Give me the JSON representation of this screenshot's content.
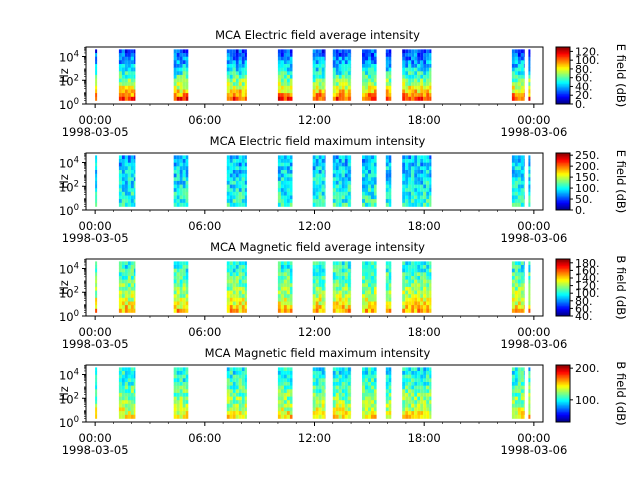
{
  "chart_data": [
    {
      "type": "heatmap",
      "title": "MCA  Electric field average intensity",
      "ylabel": "Hz",
      "y_scale": "log",
      "ylim_exp": [
        0,
        4.8
      ],
      "y_ticks": [
        {
          "base": "10",
          "exp": "4",
          "value": 4
        },
        {
          "base": "10",
          "exp": "2",
          "value": 2
        },
        {
          "base": "10",
          "exp": "0",
          "value": 0
        }
      ],
      "x_ticks": [
        "00:00",
        "06:00",
        "12:00",
        "18:00",
        "00:00"
      ],
      "x_dates": [
        "1998-03-05",
        "1998-03-06"
      ],
      "xlim_hours": [
        -0.5,
        24.5
      ],
      "colorbar": {
        "label": "E field (dB)",
        "range": [
          0,
          130
        ],
        "ticks": [
          "120.",
          "100.",
          "80.",
          "60.",
          "40.",
          "20.",
          "0."
        ],
        "tick_values": [
          120,
          100,
          80,
          60,
          40,
          20,
          0
        ]
      },
      "intervals_hours": [
        [
          0.0,
          0.1
        ],
        [
          1.3,
          2.2
        ],
        [
          4.3,
          5.1
        ],
        [
          7.2,
          8.3
        ],
        [
          10.0,
          10.8
        ],
        [
          11.9,
          12.6
        ],
        [
          13.0,
          14.0
        ],
        [
          14.6,
          15.4
        ],
        [
          15.9,
          16.2
        ],
        [
          16.8,
          18.4
        ],
        [
          22.8,
          23.5
        ],
        [
          23.7,
          23.8
        ]
      ],
      "intensity_profile": "high at low frequency (~100-120 dB), decreasing to ~40-60 dB above 10^3 Hz"
    },
    {
      "type": "heatmap",
      "title": "MCA  Electric field maximum intensity",
      "ylabel": "Hz",
      "y_scale": "log",
      "ylim_exp": [
        0,
        4.8
      ],
      "y_ticks": [
        {
          "base": "10",
          "exp": "4",
          "value": 4
        },
        {
          "base": "10",
          "exp": "2",
          "value": 2
        },
        {
          "base": "10",
          "exp": "0",
          "value": 0
        }
      ],
      "x_ticks": [
        "00:00",
        "06:00",
        "12:00",
        "18:00",
        "00:00"
      ],
      "x_dates": [
        "1998-03-05",
        "1998-03-06"
      ],
      "xlim_hours": [
        -0.5,
        24.5
      ],
      "colorbar": {
        "label": "E field (dB)",
        "range": [
          0,
          260
        ],
        "ticks": [
          "250.",
          "200.",
          "150.",
          "100.",
          "50.",
          "0."
        ],
        "tick_values": [
          250,
          200,
          150,
          100,
          50,
          0
        ]
      },
      "intervals_hours": [
        [
          0.0,
          0.1
        ],
        [
          1.3,
          2.2
        ],
        [
          4.3,
          5.1
        ],
        [
          7.2,
          8.3
        ],
        [
          10.0,
          10.8
        ],
        [
          11.9,
          12.6
        ],
        [
          13.0,
          14.0
        ],
        [
          14.6,
          15.4
        ],
        [
          15.9,
          16.2
        ],
        [
          16.8,
          18.4
        ],
        [
          22.8,
          23.5
        ],
        [
          23.7,
          23.8
        ]
      ],
      "intensity_profile": "mostly ~60-120 dB, blue-green throughout"
    },
    {
      "type": "heatmap",
      "title": "MCA  Magnetic field average intensity",
      "ylabel": "Hz",
      "y_scale": "log",
      "ylim_exp": [
        0,
        4.8
      ],
      "y_ticks": [
        {
          "base": "10",
          "exp": "4",
          "value": 4
        },
        {
          "base": "10",
          "exp": "2",
          "value": 2
        },
        {
          "base": "10",
          "exp": "0",
          "value": 0
        }
      ],
      "x_ticks": [
        "00:00",
        "06:00",
        "12:00",
        "18:00",
        "00:00"
      ],
      "x_dates": [
        "1998-03-05",
        "1998-03-06"
      ],
      "xlim_hours": [
        -0.5,
        24.5
      ],
      "colorbar": {
        "label": "B field (dB)",
        "range": [
          40,
          190
        ],
        "ticks": [
          "180.",
          "160.",
          "140.",
          "120.",
          "100.",
          "80.",
          "60.",
          "40."
        ],
        "tick_values": [
          180,
          160,
          140,
          120,
          100,
          80,
          60,
          40
        ]
      },
      "intervals_hours": [
        [
          0.0,
          0.1
        ],
        [
          1.3,
          2.2
        ],
        [
          4.3,
          5.1
        ],
        [
          7.2,
          8.3
        ],
        [
          10.0,
          10.8
        ],
        [
          11.9,
          12.6
        ],
        [
          13.0,
          14.0
        ],
        [
          14.6,
          15.4
        ],
        [
          15.9,
          16.2
        ],
        [
          16.8,
          18.4
        ],
        [
          22.8,
          23.5
        ],
        [
          23.7,
          23.8
        ]
      ],
      "intensity_profile": "~140-160 dB at low frequency, ~100-110 dB above 10^2 Hz"
    },
    {
      "type": "heatmap",
      "title": "MCA  Magnetic field maximum intensity",
      "ylabel": "Hz",
      "y_scale": "log",
      "ylim_exp": [
        0,
        4.8
      ],
      "y_ticks": [
        {
          "base": "10",
          "exp": "4",
          "value": 4
        },
        {
          "base": "10",
          "exp": "2",
          "value": 2
        },
        {
          "base": "10",
          "exp": "0",
          "value": 0
        }
      ],
      "x_ticks": [
        "00:00",
        "06:00",
        "12:00",
        "18:00",
        "00:00"
      ],
      "x_dates": [
        "1998-03-05",
        "1998-03-06"
      ],
      "xlim_hours": [
        -0.5,
        24.5
      ],
      "colorbar": {
        "label": "B field (dB)",
        "range": [
          30,
          210
        ],
        "ticks": [
          "200.",
          "100."
        ],
        "tick_values": [
          200,
          100
        ]
      },
      "intervals_hours": [
        [
          0.0,
          0.1
        ],
        [
          1.3,
          2.2
        ],
        [
          4.3,
          5.1
        ],
        [
          7.2,
          8.3
        ],
        [
          10.0,
          10.8
        ],
        [
          11.9,
          12.6
        ],
        [
          13.0,
          14.0
        ],
        [
          14.6,
          15.4
        ],
        [
          15.9,
          16.2
        ],
        [
          16.8,
          18.4
        ],
        [
          22.8,
          23.5
        ],
        [
          23.7,
          23.8
        ]
      ],
      "intensity_profile": "~150-170 dB at low frequency, ~110-120 dB above 10^2 Hz"
    }
  ]
}
